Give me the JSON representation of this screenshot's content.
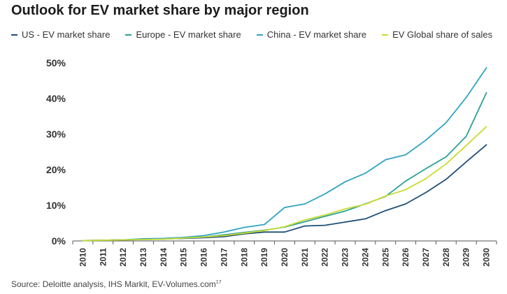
{
  "title": "Outlook for EV market share by major region",
  "source": {
    "text": "Source: Deloitte analysis, IHS Markit, EV-Volumes.com",
    "note": "17"
  },
  "chart_data": {
    "type": "line",
    "x": [
      "2010",
      "2011",
      "2012",
      "2013",
      "2014",
      "2015",
      "2016",
      "2017",
      "2018",
      "2019",
      "2020",
      "2021",
      "2022",
      "2023",
      "2024",
      "2025",
      "2026",
      "2027",
      "2028",
      "2029",
      "2030"
    ],
    "yticks": [
      "0%",
      "10%",
      "20%",
      "30%",
      "40%",
      "50%"
    ],
    "ylim": [
      0,
      50
    ],
    "grid": false,
    "legend_position": "top",
    "series": [
      {
        "name": "US - EV market share",
        "color": "#1f4e79",
        "values": [
          0.1,
          0.2,
          0.3,
          0.5,
          0.6,
          0.7,
          0.9,
          1.2,
          2.0,
          2.5,
          2.5,
          4.2,
          4.4,
          5.3,
          6.2,
          8.5,
          10.4,
          13.6,
          17.3,
          22.2,
          27.0
        ]
      },
      {
        "name": "Europe - EV market share",
        "color": "#2aa198",
        "values": [
          0.1,
          0.2,
          0.3,
          0.4,
          0.5,
          0.8,
          1.1,
          1.7,
          2.4,
          3.0,
          3.9,
          5.4,
          6.9,
          8.4,
          10.4,
          12.5,
          16.8,
          20.3,
          23.6,
          29.4,
          41.6
        ]
      },
      {
        "name": "China - EV market share",
        "color": "#2fa3c0",
        "values": [
          0.1,
          0.2,
          0.3,
          0.6,
          0.7,
          1.0,
          1.5,
          2.5,
          3.8,
          4.6,
          9.4,
          10.4,
          13.2,
          16.6,
          19.0,
          22.8,
          24.2,
          28.3,
          33.2,
          40.3,
          48.6
        ]
      },
      {
        "name": "EV Global share of sales",
        "color": "#c9dc2e",
        "values": [
          0.1,
          0.2,
          0.3,
          0.4,
          0.5,
          0.8,
          1.1,
          1.5,
          2.2,
          2.9,
          4.0,
          5.9,
          7.3,
          9.0,
          10.3,
          12.6,
          14.4,
          17.5,
          21.6,
          26.8,
          32.1
        ]
      }
    ]
  }
}
